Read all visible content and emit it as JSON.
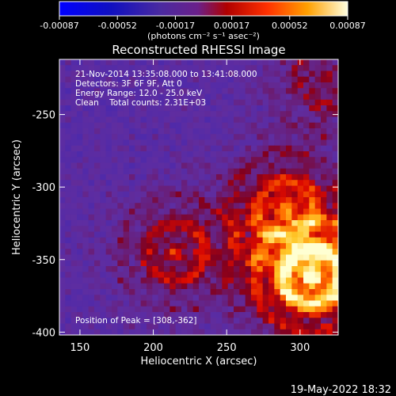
{
  "colorbar": {
    "tick_labels": [
      "-0.00087",
      "-0.00052",
      "-0.00017",
      "0.00017",
      "0.00052",
      "0.00087"
    ],
    "tick_values": [
      -0.00087,
      -0.00052,
      -0.00017,
      0.00017,
      0.00052,
      0.00087
    ],
    "range": [
      -0.00087,
      0.00087
    ],
    "unit_label": "(photons cm⁻² s⁻¹ asec⁻²)"
  },
  "chart_data": {
    "type": "heatmap",
    "title": "Reconstructed RHESSI Image",
    "xlabel": "Heliocentric X (arcsec)",
    "ylabel": "Heliocentric Y (arcsec)",
    "xlim": [
      136,
      326
    ],
    "ylim": [
      -402,
      -212
    ],
    "xticks": [
      150,
      200,
      250,
      300
    ],
    "yticks": [
      -250,
      -300,
      -350,
      -400
    ],
    "xtick_labels": [
      "150",
      "200",
      "250",
      "300"
    ],
    "ytick_labels": [
      "-250",
      "-300",
      "-350",
      "-400"
    ],
    "grid": false,
    "colormap": [
      "#0000ff",
      "#3a1aa8",
      "#5a2ea0",
      "#8a0030",
      "#ff0000",
      "#ff8000",
      "#ffff80",
      "#ffffff"
    ],
    "peak": {
      "x": 308,
      "y": -362
    },
    "sources": [
      {
        "x": 308,
        "y": -362,
        "strength": 1.0
      },
      {
        "x": 290,
        "y": -315,
        "strength": 0.55
      },
      {
        "x": 215,
        "y": -345,
        "strength": 0.45
      },
      {
        "x": 318,
        "y": -225,
        "strength": 0.35
      }
    ],
    "info_lines": [
      "21-Nov-2014 13:35:08.000 to 13:41:08.000",
      "Detectors: 3F 6F 9F, Att 0",
      "Energy Range: 12.0 - 25.0 keV",
      "Clean    Total counts: 2.31E+03"
    ],
    "peak_text": "Position of Peak = [308,-362]"
  },
  "footer": {
    "timestamp": "19-May-2022 18:32"
  }
}
